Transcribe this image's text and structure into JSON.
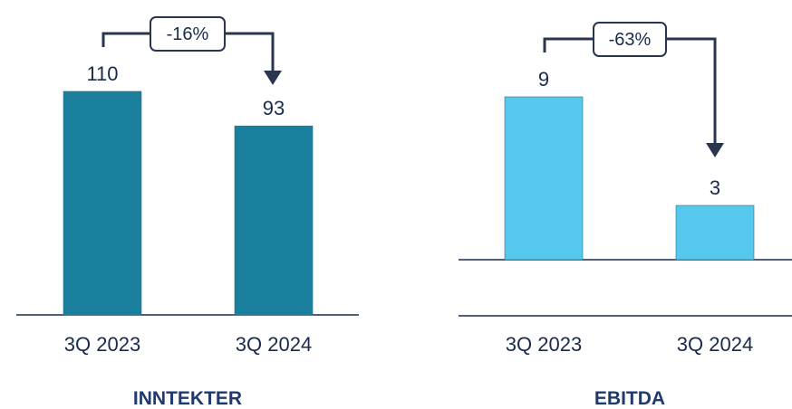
{
  "chart_data": [
    {
      "type": "bar",
      "title": "INNTEKTER",
      "categories": [
        "3Q 2023",
        "3Q 2024"
      ],
      "values": [
        110,
        93
      ],
      "value_labels": [
        "110",
        "93"
      ],
      "change_label": "-16%",
      "color": "#1a7f9c",
      "ylim": [
        0,
        110
      ]
    },
    {
      "type": "bar",
      "title": "EBITDA",
      "categories": [
        "3Q 2023",
        "3Q 2024"
      ],
      "values": [
        9,
        3
      ],
      "value_labels": [
        "9",
        "3"
      ],
      "change_label": "-63%",
      "color": "#56c8ee",
      "ylim": [
        0,
        9
      ]
    }
  ]
}
